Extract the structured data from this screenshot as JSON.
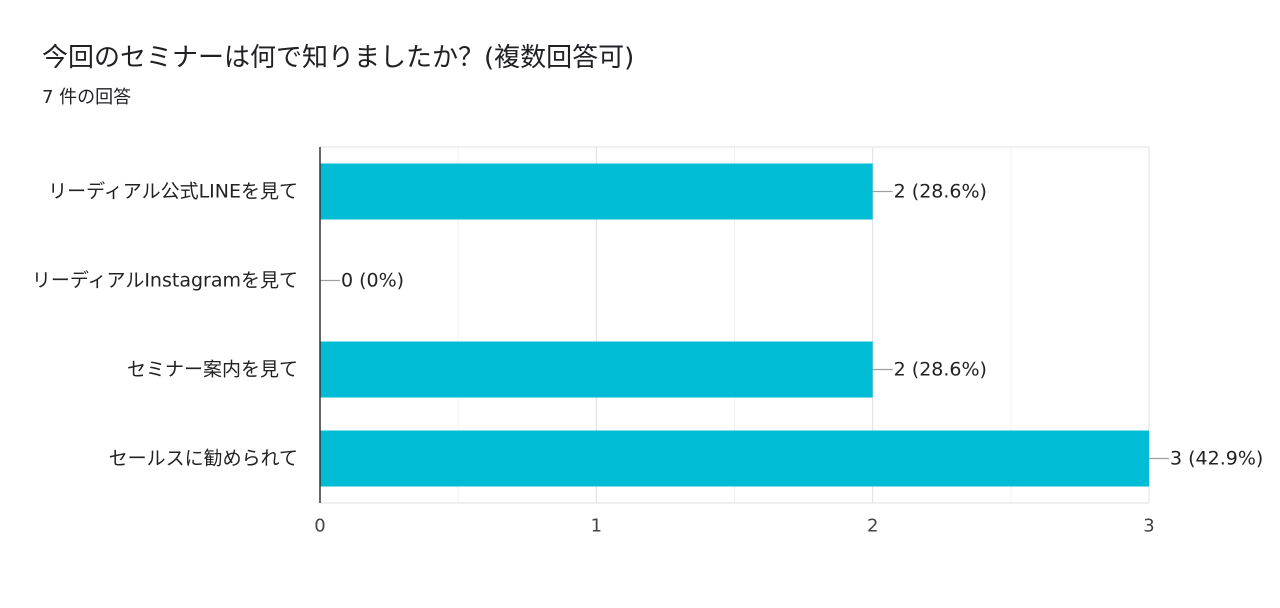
{
  "header": {
    "title": "今回のセミナーは何で知りましたか？(複数回答可)",
    "response_count": "7 件の回答"
  },
  "chart_data": {
    "type": "bar",
    "orientation": "horizontal",
    "categories": [
      "リーディアル公式LINEを見て",
      "リーディアルInstagramを見て",
      "セミナー案内を見て",
      "セールスに勧められて"
    ],
    "values": [
      2,
      0,
      2,
      3
    ],
    "data_labels": [
      "2 (28.6%)",
      "0 (0%)",
      "2 (28.6%)",
      "3 (42.9%)"
    ],
    "xlim": [
      0,
      3
    ],
    "xticks": [
      "0",
      "1",
      "2",
      "3"
    ],
    "grid": true,
    "bar_color": "#00bcd4",
    "title": "",
    "xlabel": "",
    "ylabel": ""
  }
}
